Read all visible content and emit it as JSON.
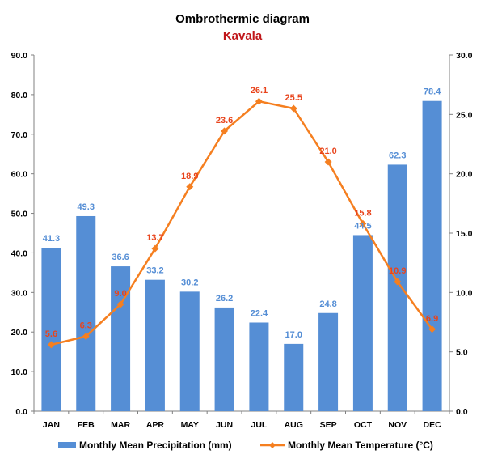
{
  "chart_data": {
    "type": "bar",
    "title": "Ombrothermic diagram",
    "subtitle": "Kavala",
    "categories": [
      "JAN",
      "FEB",
      "MAR",
      "APR",
      "MAY",
      "JUN",
      "JUL",
      "AUG",
      "SEP",
      "OCT",
      "NOV",
      "DEC"
    ],
    "series": [
      {
        "name": "Monthly Mean Precipitation (mm)",
        "type": "bar",
        "axis": "left",
        "color": "#558ED5",
        "label_color": "#558ED5",
        "values": [
          41.3,
          49.3,
          36.6,
          33.2,
          30.2,
          26.2,
          22.4,
          17.0,
          24.8,
          44.5,
          62.3,
          78.4
        ],
        "labels": [
          "41.3",
          "49.3",
          "36.6",
          "33.2",
          "30.2",
          "26.2",
          "22.4",
          "17.0",
          "24.8",
          "44.5",
          "62.3",
          "78.4"
        ]
      },
      {
        "name": "Monthly Mean Temperature (°C)",
        "type": "line",
        "axis": "right",
        "color": "#F57F20",
        "label_color": "#E8441C",
        "marker": "diamond",
        "values": [
          5.6,
          6.3,
          9.0,
          13.7,
          18.9,
          23.6,
          26.1,
          25.5,
          21.0,
          15.8,
          10.9,
          6.9
        ],
        "labels": [
          "5.6",
          "6.3",
          "9.0",
          "13.7",
          "18.9",
          "23.6",
          "26.1",
          "25.5",
          "21.0",
          "15.8",
          "10.9",
          "6.9"
        ]
      }
    ],
    "y_left": {
      "lim": [
        0,
        90
      ],
      "ticks": [
        "0.0",
        "10.0",
        "20.0",
        "30.0",
        "40.0",
        "50.0",
        "60.0",
        "70.0",
        "80.0",
        "90.0"
      ]
    },
    "y_right": {
      "lim": [
        0,
        30
      ],
      "ticks": [
        "0.0",
        "5.0",
        "10.0",
        "15.0",
        "20.0",
        "25.0",
        "30.0"
      ]
    },
    "grid": false,
    "legend": "bottom",
    "colors": {
      "title": "#000000",
      "subtitle": "#C0161A",
      "axis": "#808080"
    }
  }
}
